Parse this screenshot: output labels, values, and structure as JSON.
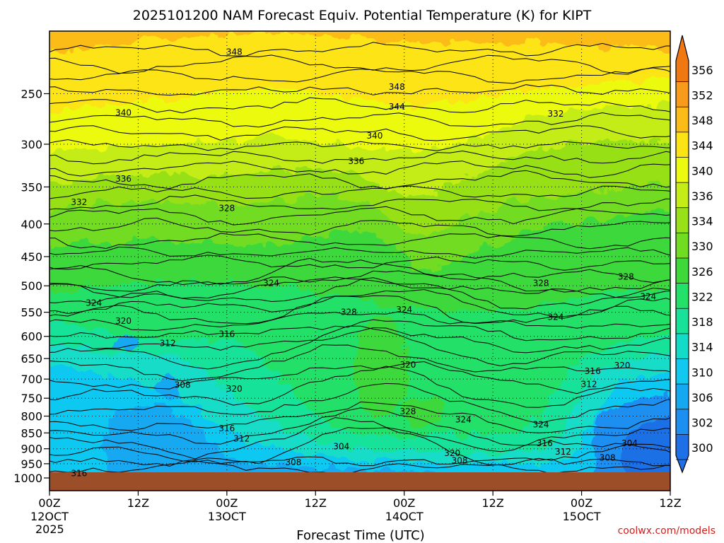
{
  "chart_data": {
    "type": "heatmap",
    "title": "2025101200 NAM Forecast Equiv. Potential Temperature (K) for KIPT",
    "xlabel": "Forecast Time (UTC)",
    "credit": "coolwx.com/models",
    "y_axis": {
      "scale": "log-pressure",
      "range_hpa": [
        1000,
        200
      ],
      "ticks": [
        250,
        300,
        350,
        400,
        450,
        500,
        550,
        600,
        650,
        700,
        750,
        800,
        850,
        900,
        950,
        1000
      ]
    },
    "x_axis": {
      "range_hours": [
        0,
        84
      ],
      "ticks": [
        {
          "hour": 0,
          "l1": "00Z",
          "l2": "12OCT",
          "l3": "2025"
        },
        {
          "hour": 12,
          "l1": "12Z",
          "l2": "",
          "l3": ""
        },
        {
          "hour": 24,
          "l1": "00Z",
          "l2": "13OCT",
          "l3": ""
        },
        {
          "hour": 36,
          "l1": "12Z",
          "l2": "",
          "l3": ""
        },
        {
          "hour": 48,
          "l1": "00Z",
          "l2": "14OCT",
          "l3": ""
        },
        {
          "hour": 60,
          "l1": "12Z",
          "l2": "",
          "l3": ""
        },
        {
          "hour": 72,
          "l1": "00Z",
          "l2": "15OCT",
          "l3": ""
        },
        {
          "hour": 84,
          "l1": "12Z",
          "l2": "",
          "l3": ""
        }
      ]
    },
    "colorbar": {
      "levels": [
        300,
        302,
        306,
        310,
        314,
        318,
        322,
        326,
        330,
        334,
        336,
        340,
        344,
        348,
        352,
        356
      ],
      "colors": [
        "#1f6fe6",
        "#1c8ff0",
        "#14a8f0",
        "#10c8f0",
        "#12dcc8",
        "#18e29a",
        "#22e068",
        "#3ed83a",
        "#72dc22",
        "#98e018",
        "#c4ec16",
        "#ecfa10",
        "#fce414",
        "#fcbc18",
        "#f89a1a",
        "#f07810"
      ],
      "label_values": [
        300,
        302,
        306,
        310,
        314,
        318,
        322,
        326,
        330,
        334,
        336,
        340,
        344,
        348,
        352,
        356
      ]
    },
    "contour_labels": [
      {
        "value": "348",
        "hour": 25.0,
        "hpa": 215
      },
      {
        "value": "348",
        "hour": 47.0,
        "hpa": 244
      },
      {
        "value": "344",
        "hour": 47.0,
        "hpa": 262
      },
      {
        "value": "340",
        "hour": 10.0,
        "hpa": 268
      },
      {
        "value": "340",
        "hour": 44.0,
        "hpa": 291
      },
      {
        "value": "332",
        "hour": 68.5,
        "hpa": 269
      },
      {
        "value": "336",
        "hour": 41.5,
        "hpa": 319
      },
      {
        "value": "336",
        "hour": 10.0,
        "hpa": 340
      },
      {
        "value": "332",
        "hour": 4.0,
        "hpa": 370
      },
      {
        "value": "328",
        "hour": 24.0,
        "hpa": 378
      },
      {
        "value": "324",
        "hour": 30.0,
        "hpa": 495
      },
      {
        "value": "324",
        "hour": 6.0,
        "hpa": 532
      },
      {
        "value": "320",
        "hour": 10.0,
        "hpa": 568
      },
      {
        "value": "312",
        "hour": 16.0,
        "hpa": 615
      },
      {
        "value": "316",
        "hour": 24.0,
        "hpa": 595
      },
      {
        "value": "328",
        "hour": 40.5,
        "hpa": 550
      },
      {
        "value": "324",
        "hour": 48.0,
        "hpa": 545
      },
      {
        "value": "320",
        "hour": 48.5,
        "hpa": 665
      },
      {
        "value": "328",
        "hour": 66.5,
        "hpa": 495
      },
      {
        "value": "324",
        "hour": 68.5,
        "hpa": 560
      },
      {
        "value": "328",
        "hour": 78.0,
        "hpa": 484
      },
      {
        "value": "324",
        "hour": 81.0,
        "hpa": 520
      },
      {
        "value": "308",
        "hour": 18.0,
        "hpa": 715
      },
      {
        "value": "320",
        "hour": 25.0,
        "hpa": 725
      },
      {
        "value": "328",
        "hour": 48.5,
        "hpa": 787
      },
      {
        "value": "324",
        "hour": 56.0,
        "hpa": 810
      },
      {
        "value": "324",
        "hour": 66.5,
        "hpa": 825
      },
      {
        "value": "316",
        "hour": 73.5,
        "hpa": 680
      },
      {
        "value": "320",
        "hour": 77.5,
        "hpa": 667
      },
      {
        "value": "312",
        "hour": 73.0,
        "hpa": 713
      },
      {
        "value": "316",
        "hour": 24.0,
        "hpa": 837
      },
      {
        "value": "312",
        "hour": 26.0,
        "hpa": 868
      },
      {
        "value": "304",
        "hour": 39.5,
        "hpa": 893
      },
      {
        "value": "308",
        "hour": 33.0,
        "hpa": 945
      },
      {
        "value": "320",
        "hour": 54.5,
        "hpa": 915
      },
      {
        "value": "308",
        "hour": 55.5,
        "hpa": 940
      },
      {
        "value": "316",
        "hour": 67.0,
        "hpa": 883
      },
      {
        "value": "312",
        "hour": 69.5,
        "hpa": 910
      },
      {
        "value": "308",
        "hour": 75.5,
        "hpa": 930
      },
      {
        "value": "304",
        "hour": 78.5,
        "hpa": 883
      },
      {
        "value": "316",
        "hour": 4.0,
        "hpa": 984
      }
    ]
  }
}
